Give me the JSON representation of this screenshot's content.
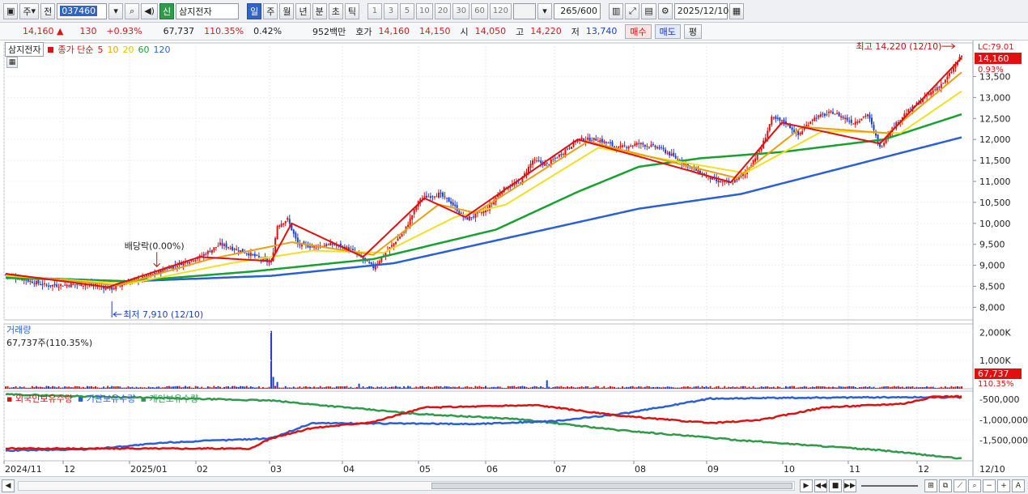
{
  "toolbar": {
    "market_btn": "주",
    "prev_btn": "전",
    "stock_code": "037460",
    "credit_tag": "신",
    "stock_name": "삼지전자",
    "periods": [
      "일",
      "주",
      "월",
      "년",
      "분",
      "초",
      "틱"
    ],
    "active_period": "일",
    "intervals": [
      "1",
      "3",
      "5",
      "10",
      "20",
      "30",
      "60",
      "120"
    ],
    "view_count": "265",
    "view_total": "/600",
    "date": "2025/12/10"
  },
  "quote": {
    "price": "14,160",
    "change_arrow": "▲",
    "change": "130",
    "change_pct": "+0.93%",
    "volume": "67,737",
    "volume_ratio": "110.35%",
    "turnover_pct": "0.42%",
    "trade_value": "952백만",
    "ask_label": "호가",
    "ask": "14,160",
    "bid": "14,150",
    "open_label": "시",
    "open": "14,050",
    "high_label": "고",
    "high": "14,220",
    "low_label": "저",
    "low": "13,740",
    "buy_btn": "매수",
    "sell_btn": "매도",
    "eval_btn": "평"
  },
  "price_legend": {
    "stock_tag": "삼지전자",
    "ma_label": "종가 단순",
    "ma_periods": [
      "5",
      "10",
      "20",
      "60",
      "120"
    ],
    "ma_colors": [
      "#e01010",
      "#e8a010",
      "#f0e020",
      "#18a030",
      "#2b5fd8"
    ]
  },
  "price_axis": {
    "labels": [
      "13,500",
      "13,000",
      "12,500",
      "12,000",
      "11,500",
      "11,000",
      "10,500",
      "10,000",
      "9,500",
      "9,000",
      "8,500",
      "8,000"
    ],
    "lc_label": "LC:79.01",
    "current_price": "14,160",
    "current_pct": "0.93%"
  },
  "annotations": {
    "high": "최고 14,220 (12/10)",
    "low": "최저 7,910 (12/10)",
    "dividend": "배당락(0.00%)"
  },
  "volume_panel": {
    "title": "거래량",
    "value": "67,737주(110.35%)",
    "axis_labels": [
      "2,000K",
      "1,000K"
    ],
    "current": "67,737",
    "current_pct": "110.35%"
  },
  "holdings_panel": {
    "legends": [
      "외국인보유수량",
      "기관보유수량",
      "개인보유수량"
    ],
    "colors": [
      "#e01010",
      "#2b5fd8",
      "#2e9a4a"
    ],
    "axis_labels": [
      "-500,000",
      "-1,000,000",
      "-1,500,000"
    ]
  },
  "date_axis": {
    "labels": [
      "2024/11",
      "12",
      "2025/01",
      "02",
      "03",
      "04",
      "05",
      "06",
      "07",
      "08",
      "09",
      "10",
      "11",
      "12"
    ],
    "right_label": "12/10"
  },
  "chart_data": {
    "type": "line",
    "title": "",
    "xlabel": "",
    "ylabel": "",
    "ylim": [
      7700,
      14300
    ],
    "price_anchors": [
      {
        "x": 0,
        "close": 8780
      },
      {
        "x": 20,
        "close": 8520
      },
      {
        "x": 40,
        "close": 8550
      },
      {
        "x": 52,
        "close": 8450
      },
      {
        "x": 60,
        "close": 8600
      },
      {
        "x": 68,
        "close": 8700
      },
      {
        "x": 80,
        "close": 8950
      },
      {
        "x": 95,
        "close": 9200
      },
      {
        "x": 105,
        "close": 9500
      },
      {
        "x": 118,
        "close": 9300
      },
      {
        "x": 130,
        "close": 9050
      },
      {
        "x": 133,
        "close": 9950
      },
      {
        "x": 138,
        "close": 10100
      },
      {
        "x": 143,
        "close": 9500
      },
      {
        "x": 150,
        "close": 9450
      },
      {
        "x": 160,
        "close": 9500
      },
      {
        "x": 168,
        "close": 9400
      },
      {
        "x": 175,
        "close": 9150
      },
      {
        "x": 180,
        "close": 8950
      },
      {
        "x": 186,
        "close": 9300
      },
      {
        "x": 195,
        "close": 9800
      },
      {
        "x": 203,
        "close": 10600
      },
      {
        "x": 212,
        "close": 10700
      },
      {
        "x": 218,
        "close": 10500
      },
      {
        "x": 225,
        "close": 10100
      },
      {
        "x": 235,
        "close": 10300
      },
      {
        "x": 243,
        "close": 10800
      },
      {
        "x": 252,
        "close": 11000
      },
      {
        "x": 258,
        "close": 11500
      },
      {
        "x": 265,
        "close": 11400
      },
      {
        "x": 273,
        "close": 11700
      },
      {
        "x": 280,
        "close": 12000
      },
      {
        "x": 290,
        "close": 12000
      },
      {
        "x": 300,
        "close": 11800
      },
      {
        "x": 310,
        "close": 11900
      },
      {
        "x": 320,
        "close": 11800
      },
      {
        "x": 330,
        "close": 11500
      },
      {
        "x": 340,
        "close": 11200
      },
      {
        "x": 348,
        "close": 11000
      },
      {
        "x": 355,
        "close": 10950
      },
      {
        "x": 362,
        "close": 11200
      },
      {
        "x": 370,
        "close": 11800
      },
      {
        "x": 375,
        "close": 12500
      },
      {
        "x": 382,
        "close": 12400
      },
      {
        "x": 388,
        "close": 12100
      },
      {
        "x": 395,
        "close": 12500
      },
      {
        "x": 405,
        "close": 12650
      },
      {
        "x": 415,
        "close": 12400
      },
      {
        "x": 422,
        "close": 12600
      },
      {
        "x": 428,
        "close": 11800
      },
      {
        "x": 433,
        "close": 12200
      },
      {
        "x": 440,
        "close": 12600
      },
      {
        "x": 450,
        "close": 13000
      },
      {
        "x": 460,
        "close": 13400
      },
      {
        "x": 468,
        "close": 14000
      }
    ],
    "ma_anchors": {
      "ma5": [
        {
          "x": 0,
          "y": 8800
        },
        {
          "x": 50,
          "y": 8480
        },
        {
          "x": 95,
          "y": 9200
        },
        {
          "x": 130,
          "y": 9100
        },
        {
          "x": 140,
          "y": 10000
        },
        {
          "x": 175,
          "y": 9200
        },
        {
          "x": 205,
          "y": 10600
        },
        {
          "x": 225,
          "y": 10150
        },
        {
          "x": 280,
          "y": 12000
        },
        {
          "x": 355,
          "y": 10980
        },
        {
          "x": 380,
          "y": 12400
        },
        {
          "x": 428,
          "y": 11900
        },
        {
          "x": 468,
          "y": 13950
        }
      ],
      "ma10": [
        {
          "x": 0,
          "y": 8780
        },
        {
          "x": 55,
          "y": 8520
        },
        {
          "x": 100,
          "y": 9150
        },
        {
          "x": 140,
          "y": 9550
        },
        {
          "x": 180,
          "y": 9250
        },
        {
          "x": 212,
          "y": 10450
        },
        {
          "x": 230,
          "y": 10250
        },
        {
          "x": 285,
          "y": 11950
        },
        {
          "x": 358,
          "y": 11080
        },
        {
          "x": 390,
          "y": 12300
        },
        {
          "x": 432,
          "y": 12150
        },
        {
          "x": 468,
          "y": 13600
        }
      ],
      "ma20": [
        {
          "x": 0,
          "y": 8750
        },
        {
          "x": 60,
          "y": 8560
        },
        {
          "x": 110,
          "y": 9050
        },
        {
          "x": 150,
          "y": 9350
        },
        {
          "x": 185,
          "y": 9300
        },
        {
          "x": 220,
          "y": 10150
        },
        {
          "x": 245,
          "y": 10450
        },
        {
          "x": 290,
          "y": 11800
        },
        {
          "x": 362,
          "y": 11200
        },
        {
          "x": 400,
          "y": 12200
        },
        {
          "x": 438,
          "y": 12150
        },
        {
          "x": 468,
          "y": 13150
        }
      ],
      "ma60": [
        {
          "x": 0,
          "y": 8700
        },
        {
          "x": 60,
          "y": 8620
        },
        {
          "x": 120,
          "y": 8850
        },
        {
          "x": 180,
          "y": 9150
        },
        {
          "x": 240,
          "y": 9850
        },
        {
          "x": 280,
          "y": 10750
        },
        {
          "x": 310,
          "y": 11350
        },
        {
          "x": 340,
          "y": 11550
        },
        {
          "x": 380,
          "y": 11700
        },
        {
          "x": 430,
          "y": 12000
        },
        {
          "x": 468,
          "y": 12600
        }
      ],
      "ma120": [
        {
          "x": 0,
          "y": 8720
        },
        {
          "x": 60,
          "y": 8620
        },
        {
          "x": 130,
          "y": 8750
        },
        {
          "x": 190,
          "y": 9050
        },
        {
          "x": 250,
          "y": 9700
        },
        {
          "x": 310,
          "y": 10350
        },
        {
          "x": 360,
          "y": 10700
        },
        {
          "x": 420,
          "y": 11450
        },
        {
          "x": 468,
          "y": 12050
        }
      ]
    },
    "volume_spike": {
      "x": 130,
      "value": 2050000
    },
    "holdings": {
      "foreign": [
        {
          "x": 0,
          "y": -1700000
        },
        {
          "x": 60,
          "y": -1700000
        },
        {
          "x": 120,
          "y": -1700000
        },
        {
          "x": 130,
          "y": -1450000
        },
        {
          "x": 150,
          "y": -1200000
        },
        {
          "x": 180,
          "y": -1050000
        },
        {
          "x": 205,
          "y": -700000
        },
        {
          "x": 260,
          "y": -640000
        },
        {
          "x": 300,
          "y": -900000
        },
        {
          "x": 345,
          "y": -1080000
        },
        {
          "x": 370,
          "y": -1000000
        },
        {
          "x": 400,
          "y": -700000
        },
        {
          "x": 440,
          "y": -600000
        },
        {
          "x": 455,
          "y": -430000
        },
        {
          "x": 468,
          "y": -430000
        }
      ],
      "institution": [
        {
          "x": 0,
          "y": -1750000
        },
        {
          "x": 40,
          "y": -1720000
        },
        {
          "x": 80,
          "y": -1550000
        },
        {
          "x": 130,
          "y": -1450000
        },
        {
          "x": 150,
          "y": -1080000
        },
        {
          "x": 230,
          "y": -1100000
        },
        {
          "x": 270,
          "y": -1030000
        },
        {
          "x": 305,
          "y": -830000
        },
        {
          "x": 345,
          "y": -480000
        },
        {
          "x": 420,
          "y": -450000
        },
        {
          "x": 468,
          "y": -450000
        }
      ],
      "individual": [
        {
          "x": 0,
          "y": -380000
        },
        {
          "x": 60,
          "y": -450000
        },
        {
          "x": 130,
          "y": -530000
        },
        {
          "x": 200,
          "y": -850000
        },
        {
          "x": 250,
          "y": -980000
        },
        {
          "x": 300,
          "y": -1250000
        },
        {
          "x": 360,
          "y": -1500000
        },
        {
          "x": 430,
          "y": -1750000
        },
        {
          "x": 468,
          "y": -1950000
        }
      ]
    }
  }
}
